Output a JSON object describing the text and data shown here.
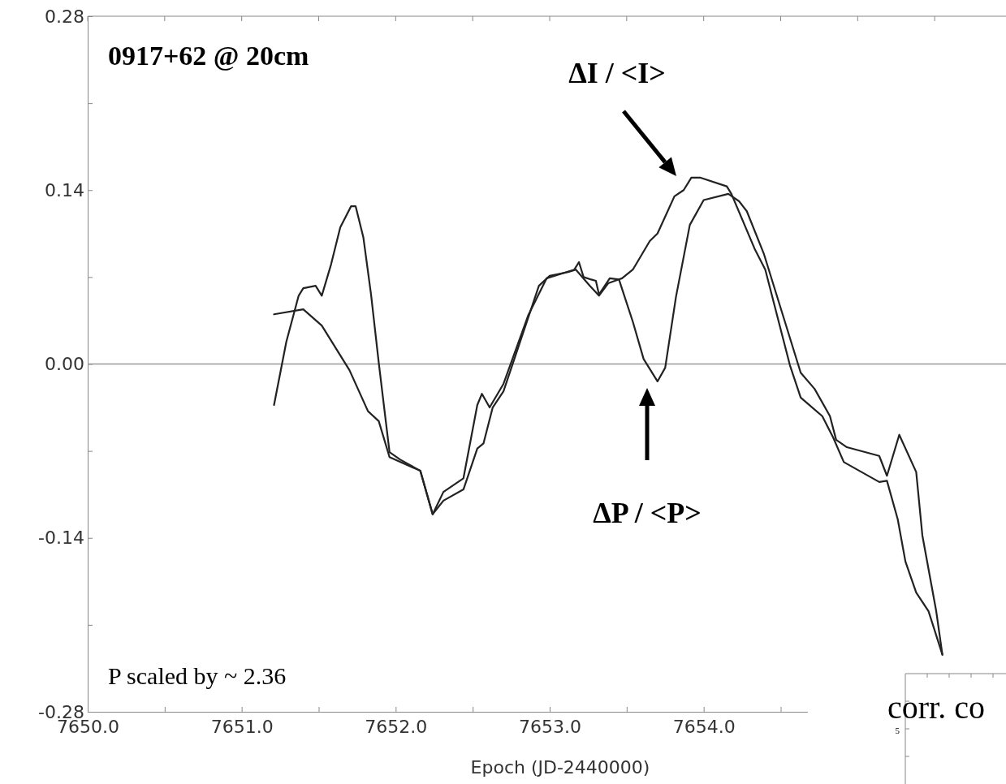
{
  "chart_data": {
    "type": "line",
    "title": "0917+62 @ 20cm",
    "xlabel": "Epoch (JD-2440000)",
    "xlim": [
      7650,
      7656
    ],
    "ylim": [
      -0.28,
      0.28
    ],
    "xticks": [
      {
        "value": 7650,
        "label": "7650.0"
      },
      {
        "value": 7650.5,
        "label": null
      },
      {
        "value": 7651,
        "label": "7651.0"
      },
      {
        "value": 7651.5,
        "label": null
      },
      {
        "value": 7652,
        "label": "7652.0"
      },
      {
        "value": 7652.5,
        "label": null
      },
      {
        "value": 7653,
        "label": "7653.0"
      },
      {
        "value": 7653.5,
        "label": null
      },
      {
        "value": 7654,
        "label": "7654.0"
      },
      {
        "value": 7654.5,
        "label": null
      },
      {
        "value": 7655,
        "label": null
      },
      {
        "value": 7655.5,
        "label": null
      }
    ],
    "yticks": [
      {
        "value": -0.28,
        "label": "-0.28"
      },
      {
        "value": -0.21,
        "label": null
      },
      {
        "value": -0.14,
        "label": "-0.14"
      },
      {
        "value": -0.07,
        "label": null
      },
      {
        "value": 0,
        "label": "0.00"
      },
      {
        "value": 0.07,
        "label": null
      },
      {
        "value": 0.14,
        "label": "0.14"
      },
      {
        "value": 0.21,
        "label": null
      },
      {
        "value": 0.28,
        "label": "0.28"
      }
    ],
    "ref_lines": [
      {
        "axis": "y",
        "value": 0,
        "color": "#999999"
      }
    ],
    "series": [
      {
        "color": "#222222",
        "x": [
          7651.21,
          7651.4,
          7651.52,
          7651.7,
          7651.82,
          7651.89,
          7651.96,
          7652.16,
          7652.24,
          7652.31,
          7652.44,
          7652.53,
          7652.57,
          7652.63,
          7652.7,
          7652.93,
          7653.0,
          7653.12,
          7653.17,
          7653.26,
          7653.32,
          7653.38,
          7653.47,
          7653.54,
          7653.65,
          7653.7,
          7653.81,
          7653.87,
          7653.92,
          7653.98,
          7654.15,
          7654.18,
          7654.33,
          7654.4,
          7654.56,
          7654.63,
          7654.77,
          7654.84,
          7654.91,
          7655.14,
          7655.19,
          7655.26,
          7655.31,
          7655.38,
          7655.46,
          7655.55
        ],
        "values": [
          0.04,
          0.044,
          0.031,
          -0.005,
          -0.038,
          -0.046,
          -0.075,
          -0.086,
          -0.121,
          -0.11,
          -0.101,
          -0.068,
          -0.064,
          -0.035,
          -0.022,
          0.063,
          0.071,
          0.074,
          0.076,
          0.063,
          0.055,
          0.065,
          0.069,
          0.076,
          0.099,
          0.105,
          0.135,
          0.14,
          0.15,
          0.15,
          0.143,
          0.137,
          0.093,
          0.076,
          -0.001,
          -0.027,
          -0.042,
          -0.059,
          -0.079,
          -0.095,
          -0.094,
          -0.125,
          -0.159,
          -0.184,
          -0.199,
          -0.234
        ]
      },
      {
        "color": "#222222",
        "x": [
          7651.21,
          7651.29,
          7651.37,
          7651.4,
          7651.48,
          7651.52,
          7651.58,
          7651.64,
          7651.71,
          7651.74,
          7651.79,
          7651.84,
          7651.89,
          7651.96,
          7652.03,
          7652.16,
          7652.24,
          7652.31,
          7652.44,
          7652.53,
          7652.56,
          7652.61,
          7652.7,
          7652.86,
          7652.98,
          7653.16,
          7653.19,
          7653.22,
          7653.27,
          7653.3,
          7653.32,
          7653.39,
          7653.45,
          7653.54,
          7653.61,
          7653.7,
          7653.75,
          7653.82,
          7653.91,
          7654.0,
          7654.16,
          7654.23,
          7654.28,
          7654.39,
          7654.63,
          7654.72,
          7654.82,
          7654.86,
          7654.93,
          7655.14,
          7655.19,
          7655.27,
          7655.38,
          7655.42,
          7655.51,
          7655.55
        ],
        "values": [
          -0.033,
          0.018,
          0.055,
          0.061,
          0.063,
          0.055,
          0.08,
          0.11,
          0.127,
          0.127,
          0.102,
          0.056,
          0.001,
          -0.071,
          -0.077,
          -0.086,
          -0.121,
          -0.103,
          -0.092,
          -0.033,
          -0.024,
          -0.035,
          -0.016,
          0.039,
          0.069,
          0.076,
          0.082,
          0.07,
          0.068,
          0.067,
          0.056,
          0.069,
          0.068,
          0.034,
          0.004,
          -0.014,
          -0.003,
          0.054,
          0.112,
          0.132,
          0.137,
          0.131,
          0.123,
          0.089,
          -0.007,
          -0.02,
          -0.042,
          -0.061,
          -0.067,
          -0.074,
          -0.09,
          -0.057,
          -0.087,
          -0.138,
          -0.199,
          -0.234
        ]
      }
    ],
    "annotations": [
      "ΔI / <I>",
      "ΔP / <P>",
      "P scaled by ~ 2.36",
      "corr. co",
      "5"
    ]
  }
}
